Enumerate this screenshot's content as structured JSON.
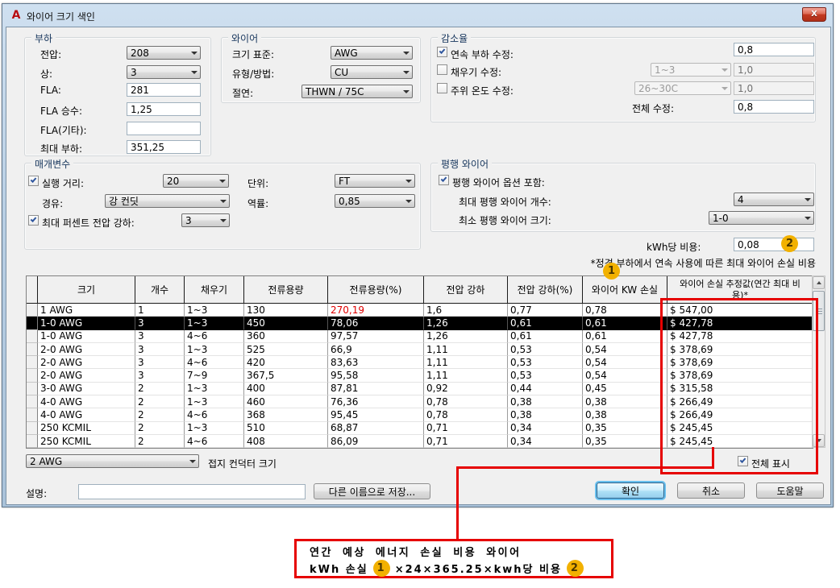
{
  "colors": {
    "accent_red": "#e60000",
    "badge_yellow": "#f2b100",
    "selected_row_bg": "#000000",
    "warning_value_red": "#e00000",
    "default_button_ring": "#69c0ee",
    "titlebar_blue": "#b9cfe4",
    "dialog_bg": "#f0f0f0"
  },
  "window": {
    "title": "와이어 크기 색인"
  },
  "icons": {
    "app": "A",
    "close": "X",
    "chevron_down": "triangle-down",
    "check": "check-mark"
  },
  "groups": {
    "load": {
      "title": "부하",
      "voltage_label": "전압:",
      "voltage_value": "208",
      "phase_label": "상:",
      "phase_value": "3",
      "fla_label": "FLA:",
      "fla_value": "281",
      "fla_mult_label": "FLA 승수:",
      "fla_mult_value": "1,25",
      "fla_other_label": "FLA(기타):",
      "fla_other_value": "",
      "max_load_label": "최대 부하:",
      "max_load_value": "351,25"
    },
    "wire": {
      "title": "와이어",
      "standard_label": "크기 표준:",
      "standard_value": "AWG",
      "type_label": "유형/방법:",
      "type_value": "CU",
      "insulation_label": "절연:",
      "insulation_value": "THWN / 75C"
    },
    "derating": {
      "title": "감소율",
      "continuous_label": "연속 부하 수정:",
      "continuous_checked": true,
      "continuous_value": "0,8",
      "fill_label": "채우기 수정:",
      "fill_checked": false,
      "fill_combo": "1~3",
      "fill_value": "1,0",
      "ambient_label": "주위 온도 수정:",
      "ambient_checked": false,
      "ambient_combo": "26~30C",
      "ambient_value": "1,0",
      "total_label": "전체 수정:",
      "total_value": "0,8"
    },
    "parameters": {
      "title": "매개변수",
      "run_label": "실행 거리:",
      "run_checked": true,
      "run_value": "20",
      "unit_label": "단위:",
      "unit_value": "FT",
      "via_label": "경유:",
      "via_value": "강 컨딧",
      "pf_label": "역률:",
      "pf_value": "0,85",
      "maxvd_label": "최대 퍼센트 전압 강하:",
      "maxvd_checked": true,
      "maxvd_value": "3"
    },
    "parallel": {
      "title": "평행 와이어",
      "include_label": "평행 와이어 옵션 포함:",
      "include_checked": true,
      "max_count_label": "최대 평행 와이어 개수:",
      "max_count_value": "4",
      "min_size_label": "최소 평행 와이어 크기:",
      "min_size_value": "1-0"
    }
  },
  "kwh": {
    "label": "kWh당 비용:",
    "value": "0,08",
    "badge": "2"
  },
  "note": {
    "text": "*정격 부하에서 연속 사용에 따른 최대 와이어 손실 비용",
    "badge": "1"
  },
  "table": {
    "columns": [
      "",
      "크기",
      "개수",
      "채우기",
      "전류용량",
      "전류용량(%)",
      "전압 강하",
      "전압 강하(%)",
      "와이어 KW 손실",
      "와이어 손실 추정값(연간 최대 비용)*"
    ],
    "rows": [
      [
        "1 AWG",
        "1",
        "1~3",
        "130",
        "270,19",
        "1,6",
        "0,77",
        "0,78",
        "$ 547,00"
      ],
      [
        "1-0 AWG",
        "3",
        "1~3",
        "450",
        "78,06",
        "1,26",
        "0,61",
        "0,61",
        "$ 427,78"
      ],
      [
        "1-0 AWG",
        "3",
        "4~6",
        "360",
        "97,57",
        "1,26",
        "0,61",
        "0,61",
        "$ 427,78"
      ],
      [
        "2-0 AWG",
        "3",
        "1~3",
        "525",
        "66,9",
        "1,11",
        "0,53",
        "0,54",
        "$ 378,69"
      ],
      [
        "2-0 AWG",
        "3",
        "4~6",
        "420",
        "83,63",
        "1,11",
        "0,53",
        "0,54",
        "$ 378,69"
      ],
      [
        "2-0 AWG",
        "3",
        "7~9",
        "367,5",
        "95,58",
        "1,11",
        "0,53",
        "0,54",
        "$ 378,69"
      ],
      [
        "3-0 AWG",
        "2",
        "1~3",
        "400",
        "87,81",
        "0,92",
        "0,44",
        "0,45",
        "$ 315,58"
      ],
      [
        "4-0 AWG",
        "2",
        "1~3",
        "460",
        "76,36",
        "0,78",
        "0,38",
        "0,38",
        "$ 266,49"
      ],
      [
        "4-0 AWG",
        "2",
        "4~6",
        "368",
        "95,45",
        "0,78",
        "0,38",
        "0,38",
        "$ 266,49"
      ],
      [
        "250 KCMIL",
        "2",
        "1~3",
        "510",
        "68,87",
        "0,71",
        "0,34",
        "0,35",
        "$ 245,45"
      ],
      [
        "250 KCMIL",
        "2",
        "4~6",
        "408",
        "86,09",
        "0,71",
        "0,34",
        "0,35",
        "$ 245,45"
      ]
    ],
    "selected_row_index": 1,
    "red_value": {
      "row": 0,
      "col": 4
    }
  },
  "footer": {
    "ground_size_value": "2 AWG",
    "ground_size_label": "접지 컨덕터 크기",
    "show_all_label": "전체 표시",
    "show_all_checked": true,
    "desc_label": "설명:",
    "desc_value": "",
    "save_as_label": "다른 이름으로 저장...",
    "ok_label": "확인",
    "cancel_label": "취소",
    "help_label": "도움말"
  },
  "callout": {
    "line1": "연간 예상 에너지 손실 비용 와이어",
    "line2_prefix": "kWh 손실",
    "badge1": "1",
    "line2_middle": "×24×365.25×kwh당 비용",
    "badge2": "2"
  }
}
